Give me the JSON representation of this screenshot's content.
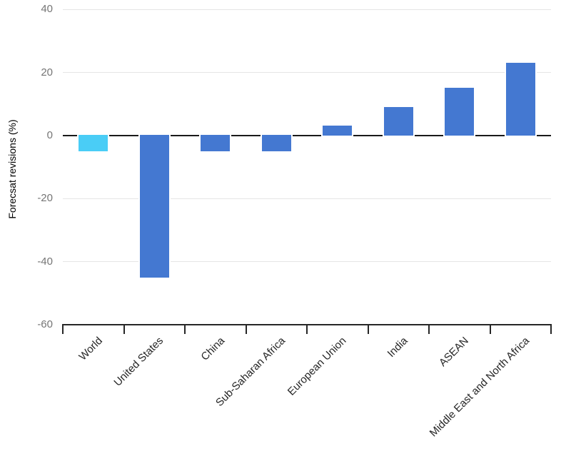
{
  "chart_data": {
    "type": "bar",
    "title": "",
    "xlabel": "",
    "ylabel": "Forecsat revisions (%)",
    "categories": [
      "World",
      "United States",
      "China",
      "Sub-Saharan Africa",
      "European Union",
      "India",
      "ASEAN",
      "Middle East and North Africa"
    ],
    "values": [
      -5,
      -45,
      -5,
      -5,
      3,
      9,
      15,
      23
    ],
    "bar_colors": [
      "#4ACDF6",
      "#4478D1",
      "#4478D1",
      "#4478D1",
      "#4478D1",
      "#4478D1",
      "#4478D1",
      "#4478D1"
    ],
    "ylim": [
      -60,
      40
    ],
    "yticks": [
      40,
      20,
      0,
      -20,
      -40,
      -60
    ],
    "grid": true,
    "legend": "none",
    "colors": {
      "bar_blue": "#4478D1",
      "bar_cyan": "#4ACDF6",
      "gridline": "#e5e5e5",
      "zero_line": "#1a1a1a",
      "axis_line": "#262626",
      "tick_label": "#757575",
      "category_label": "#262626",
      "axis_title": "#595959",
      "background": "#ffffff"
    }
  }
}
